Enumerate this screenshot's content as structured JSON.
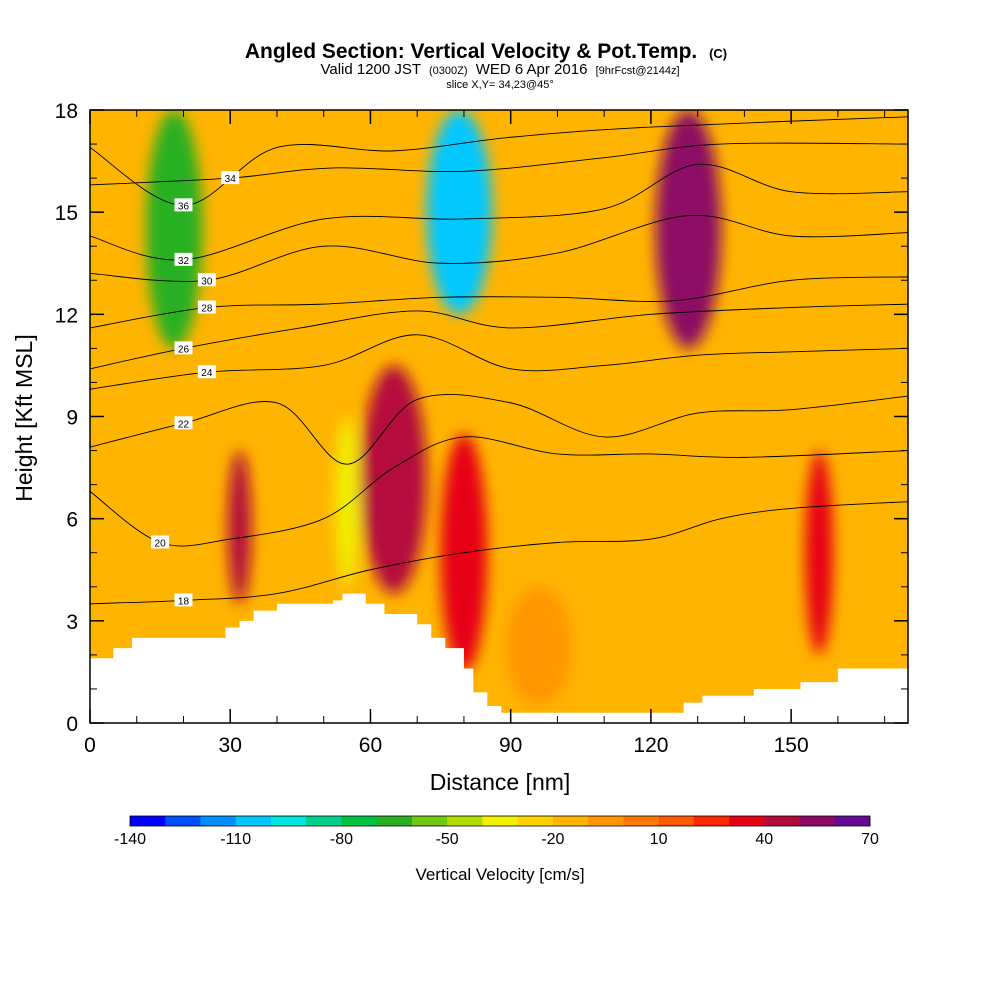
{
  "chart_data": {
    "type": "heatmap",
    "title": "Angled Section: Vertical Velocity & Pot.Temp.",
    "title_units": "(C)",
    "subtitle_prefix": "Valid 1200 JST",
    "subtitle_utc": "(0300Z)",
    "subtitle_date": "WED 6 Apr 2016",
    "subtitle_fcst": "[9hrFcst@2144z]",
    "slice_label": "slice X,Y= 34,23@45°",
    "xlabel": "Distance [nm]",
    "ylabel": "Height [Kft MSL]",
    "xlim": [
      0,
      175
    ],
    "ylim": [
      0,
      18
    ],
    "x_ticks": [
      0,
      30,
      60,
      90,
      120,
      150
    ],
    "x_tick_labels": [
      "0",
      "30",
      "60",
      "90",
      "120",
      "150"
    ],
    "y_ticks": [
      0,
      3,
      6,
      9,
      12,
      15,
      18
    ],
    "y_tick_labels": [
      "0",
      "3",
      "6",
      "9",
      "12",
      "15",
      "18"
    ],
    "colorbar": {
      "label": "Vertical Velocity [cm/s]",
      "min": -140,
      "max": 70,
      "step": 10,
      "tick_values": [
        -140,
        -110,
        -80,
        -50,
        -20,
        10,
        40,
        70
      ],
      "tick_labels": [
        "-140",
        "-110",
        "-80",
        "-50",
        "-20",
        "10",
        "40",
        "70"
      ],
      "colors": [
        "#0000ff",
        "#0050ff",
        "#0090ff",
        "#00c8ff",
        "#00e6e0",
        "#00d08c",
        "#00c040",
        "#28b020",
        "#70c810",
        "#b0dc00",
        "#f0f000",
        "#ffd200",
        "#ffb400",
        "#ff9600",
        "#ff7800",
        "#ff5a00",
        "#ff2800",
        "#e60014",
        "#b40a3c",
        "#8c0a64",
        "#640a96"
      ]
    },
    "terrain_profile": [
      [
        0,
        1.9
      ],
      [
        5,
        2.2
      ],
      [
        9,
        2.5
      ],
      [
        28,
        2.5
      ],
      [
        29,
        2.8
      ],
      [
        32,
        3.0
      ],
      [
        35,
        3.3
      ],
      [
        40,
        3.5
      ],
      [
        52,
        3.6
      ],
      [
        54,
        3.8
      ],
      [
        58,
        3.8
      ],
      [
        59,
        3.5
      ],
      [
        63,
        3.2
      ],
      [
        68,
        3.2
      ],
      [
        70,
        2.9
      ],
      [
        73,
        2.5
      ],
      [
        76,
        2.2
      ],
      [
        80,
        1.6
      ],
      [
        82,
        0.9
      ],
      [
        85,
        0.5
      ],
      [
        88,
        0.3
      ],
      [
        125,
        0.3
      ],
      [
        127,
        0.6
      ],
      [
        130,
        0.6
      ],
      [
        131,
        0.8
      ],
      [
        140,
        0.8
      ],
      [
        142,
        1.0
      ],
      [
        150,
        1.0
      ],
      [
        152,
        1.2
      ],
      [
        158,
        1.2
      ],
      [
        160,
        1.6
      ],
      [
        175,
        1.6
      ]
    ],
    "vertical_velocity_features": [
      {
        "x_center": 18,
        "x_halfwidth": 6,
        "z_bottom": 11,
        "z_top": 18,
        "value": -70
      },
      {
        "x_center": 79,
        "x_halfwidth": 7,
        "z_bottom": 12,
        "z_top": 18,
        "value": -110
      },
      {
        "x_center": 55,
        "x_halfwidth": 2.5,
        "z_bottom": 4,
        "z_top": 9,
        "value": -40
      },
      {
        "x_center": 128,
        "x_halfwidth": 7,
        "z_bottom": 11,
        "z_top": 18,
        "value": 55
      },
      {
        "x_center": 65,
        "x_halfwidth": 7,
        "z_bottom": 3.8,
        "z_top": 10.5,
        "value": 45
      },
      {
        "x_center": 80,
        "x_halfwidth": 5,
        "z_bottom": 1.5,
        "z_top": 8.5,
        "value": 35
      },
      {
        "x_center": 32,
        "x_halfwidth": 2.5,
        "z_bottom": 3.5,
        "z_top": 8,
        "value": 45
      },
      {
        "x_center": 156,
        "x_halfwidth": 3,
        "z_bottom": 2,
        "z_top": 8,
        "value": 35
      },
      {
        "x_center": 96,
        "x_halfwidth": 7,
        "z_bottom": 0.5,
        "z_top": 4,
        "value": -10
      }
    ],
    "isentropes": [
      {
        "value": 18,
        "label": "18",
        "points": [
          [
            0,
            3.5
          ],
          [
            20,
            3.6
          ],
          [
            40,
            3.8
          ],
          [
            60,
            4.5
          ],
          [
            80,
            5.0
          ],
          [
            100,
            5.3
          ],
          [
            120,
            5.4
          ],
          [
            135,
            6.0
          ],
          [
            150,
            6.3
          ],
          [
            175,
            6.5
          ]
        ]
      },
      {
        "value": 20,
        "label": "20",
        "points": [
          [
            0,
            6.8
          ],
          [
            15,
            5.3
          ],
          [
            30,
            5.4
          ],
          [
            50,
            6.0
          ],
          [
            65,
            7.5
          ],
          [
            80,
            8.4
          ],
          [
            100,
            7.9
          ],
          [
            120,
            7.9
          ],
          [
            140,
            7.8
          ],
          [
            175,
            8.0
          ]
        ]
      },
      {
        "value": 22,
        "label": "22",
        "points": [
          [
            0,
            8.1
          ],
          [
            20,
            8.8
          ],
          [
            40,
            9.4
          ],
          [
            55,
            7.6
          ],
          [
            70,
            9.5
          ],
          [
            90,
            9.4
          ],
          [
            110,
            8.4
          ],
          [
            130,
            9.1
          ],
          [
            150,
            9.2
          ],
          [
            175,
            9.6
          ]
        ]
      },
      {
        "value": 24,
        "label": "24",
        "points": [
          [
            0,
            9.8
          ],
          [
            25,
            10.3
          ],
          [
            50,
            10.5
          ],
          [
            70,
            11.4
          ],
          [
            90,
            10.4
          ],
          [
            110,
            10.5
          ],
          [
            130,
            10.8
          ],
          [
            150,
            10.9
          ],
          [
            175,
            11.0
          ]
        ]
      },
      {
        "value": 26,
        "label": "26",
        "points": [
          [
            0,
            10.4
          ],
          [
            20,
            11.0
          ],
          [
            45,
            11.6
          ],
          [
            70,
            12.1
          ],
          [
            90,
            11.6
          ],
          [
            120,
            12.0
          ],
          [
            150,
            12.2
          ],
          [
            175,
            12.3
          ]
        ]
      },
      {
        "value": 28,
        "label": "28",
        "points": [
          [
            0,
            11.6
          ],
          [
            25,
            12.2
          ],
          [
            50,
            12.3
          ],
          [
            75,
            12.5
          ],
          [
            100,
            12.5
          ],
          [
            125,
            12.4
          ],
          [
            150,
            13.0
          ],
          [
            175,
            13.1
          ]
        ]
      },
      {
        "value": 30,
        "label": "30",
        "points": [
          [
            0,
            13.2
          ],
          [
            25,
            13.0
          ],
          [
            50,
            14.0
          ],
          [
            75,
            13.5
          ],
          [
            100,
            13.8
          ],
          [
            128,
            14.9
          ],
          [
            150,
            14.3
          ],
          [
            175,
            14.4
          ]
        ]
      },
      {
        "value": 32,
        "label": "32",
        "points": [
          [
            0,
            14.3
          ],
          [
            20,
            13.6
          ],
          [
            50,
            14.8
          ],
          [
            80,
            14.8
          ],
          [
            110,
            15.1
          ],
          [
            130,
            16.4
          ],
          [
            150,
            15.6
          ],
          [
            175,
            15.6
          ]
        ]
      },
      {
        "value": 34,
        "label": "34",
        "points": [
          [
            0,
            15.8
          ],
          [
            30,
            16.0
          ],
          [
            52,
            16.3
          ],
          [
            80,
            16.2
          ],
          [
            110,
            16.6
          ],
          [
            135,
            17.0
          ],
          [
            175,
            17.0
          ]
        ]
      },
      {
        "value": 36,
        "label": "36",
        "points": [
          [
            0,
            16.9
          ],
          [
            20,
            15.2
          ],
          [
            40,
            16.9
          ],
          [
            65,
            16.8
          ],
          [
            90,
            17.2
          ],
          [
            120,
            17.5
          ],
          [
            175,
            17.8
          ]
        ]
      }
    ]
  }
}
